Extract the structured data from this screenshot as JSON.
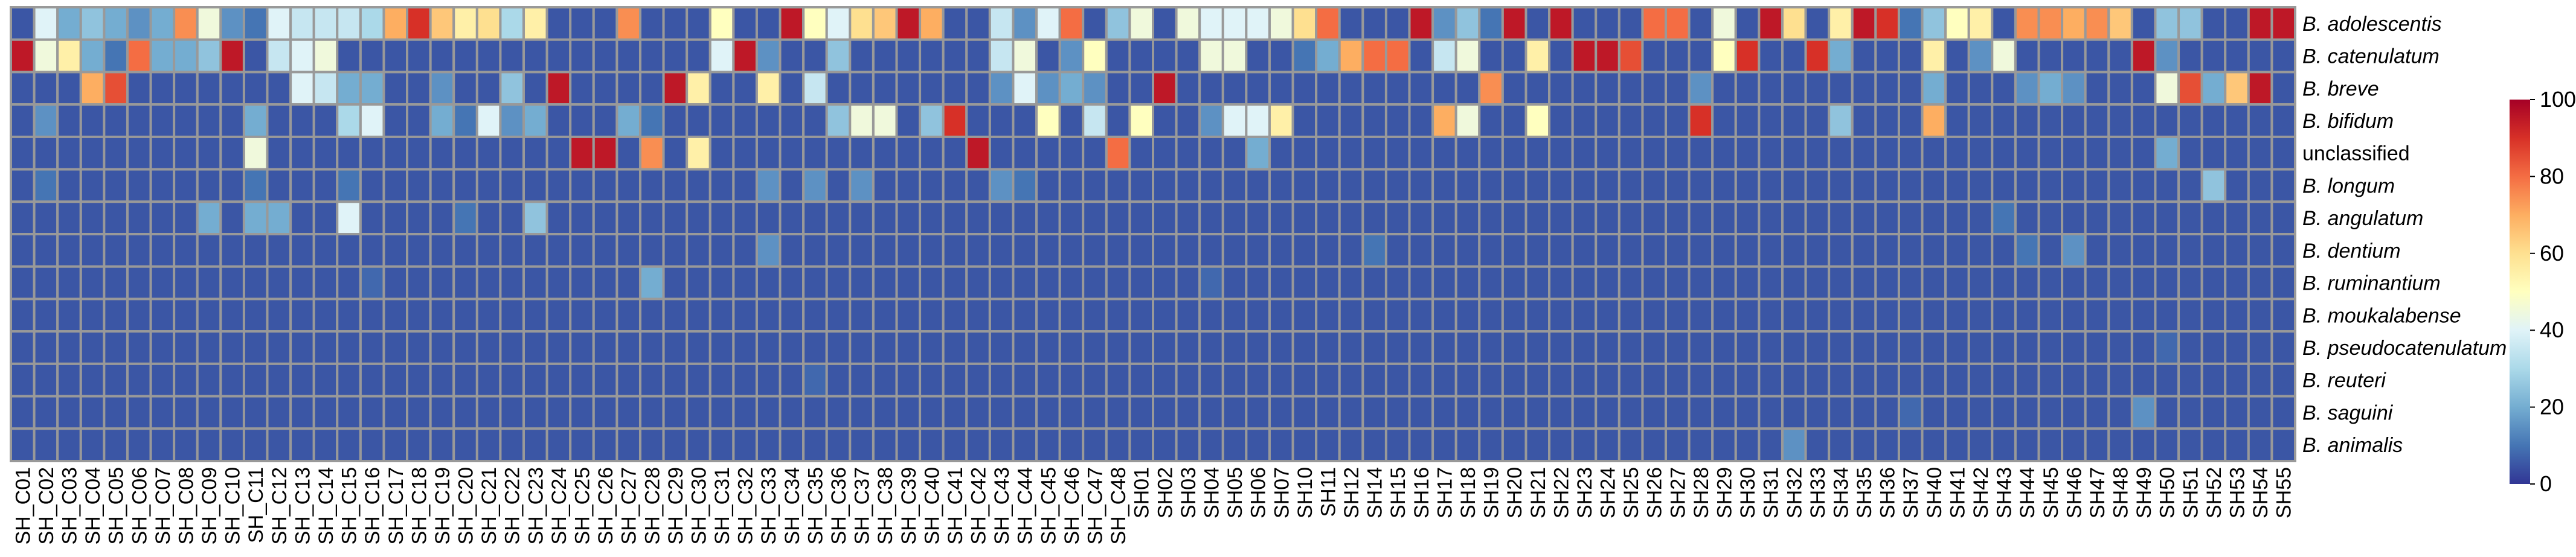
{
  "chart_data": {
    "type": "heatmap",
    "title": "",
    "rows": [
      "B. adolescentis",
      "B. catenulatum",
      "B. breve",
      "B. bifidum",
      "unclassified",
      "B. longum",
      "B. angulatum",
      "B. dentium",
      "B. ruminantium",
      "B. moukalabense",
      "B. pseudocatenulatum",
      "B. reuteri",
      "B. saguini",
      "B. animalis"
    ],
    "row_italic": [
      true,
      true,
      true,
      true,
      false,
      true,
      true,
      true,
      true,
      true,
      true,
      true,
      true,
      true
    ],
    "columns": [
      "SH_C01",
      "SH_C02",
      "SH_C03",
      "SH_C04",
      "SH_C05",
      "SH_C06",
      "SH_C07",
      "SH_C08",
      "SH_C09",
      "SH_C10",
      "SH_C11",
      "SH_C12",
      "SH_C13",
      "SH_C14",
      "SH_C15",
      "SH_C16",
      "SH_C17",
      "SH_C18",
      "SH_C19",
      "SH_C20",
      "SH_C21",
      "SH_C22",
      "SH_C23",
      "SH_C24",
      "SH_C25",
      "SH_C26",
      "SH_C27",
      "SH_C28",
      "SH_C29",
      "SH_C30",
      "SH_C31",
      "SH_C32",
      "SH_C33",
      "SH_C34",
      "SH_C35",
      "SH_C36",
      "SH_C37",
      "SH_C38",
      "SH_C39",
      "SH_C40",
      "SH_C41",
      "SH_C42",
      "SH_C43",
      "SH_C44",
      "SH_C45",
      "SH_C46",
      "SH_C47",
      "SH_C48",
      "SH01",
      "SH02",
      "SH03",
      "SH04",
      "SH05",
      "SH06",
      "SH07",
      "SH10",
      "SH11",
      "SH12",
      "SH14",
      "SH15",
      "SH16",
      "SH17",
      "SH18",
      "SH19",
      "SH20",
      "SH21",
      "SH22",
      "SH23",
      "SH24",
      "SH25",
      "SH26",
      "SH27",
      "SH28",
      "SH29",
      "SH30",
      "SH31",
      "SH32",
      "SH33",
      "SH34",
      "SH35",
      "SH36",
      "SH37",
      "SH40",
      "SH41",
      "SH42",
      "SH43",
      "SH44",
      "SH45",
      "SH46",
      "SH47",
      "SH48",
      "SH49",
      "SH50",
      "SH51",
      "SH52",
      "SH53",
      "SH54",
      "SH55"
    ],
    "values": [
      [
        5,
        40,
        20,
        25,
        20,
        15,
        20,
        75,
        45,
        15,
        10,
        40,
        35,
        35,
        35,
        30,
        70,
        90,
        65,
        55,
        60,
        30,
        55,
        5,
        5,
        5,
        75,
        5,
        5,
        5,
        50,
        5,
        5,
        95,
        50,
        40,
        60,
        65,
        95,
        70,
        5,
        5,
        35,
        15,
        40,
        80,
        5,
        25,
        45,
        5,
        45,
        40,
        40,
        40,
        45,
        60,
        80,
        5,
        5,
        5,
        95,
        15,
        25,
        10,
        95,
        5,
        95,
        5,
        5,
        5,
        80,
        80,
        5,
        45,
        5,
        95,
        60,
        5,
        55,
        95,
        90,
        10,
        25,
        50,
        55,
        5,
        75,
        75,
        70,
        75,
        65,
        5,
        25,
        25,
        5,
        5,
        95,
        95
      ],
      [
        95,
        45,
        55,
        20,
        10,
        80,
        20,
        20,
        25,
        95,
        5,
        35,
        40,
        45,
        5,
        5,
        5,
        5,
        5,
        5,
        5,
        5,
        5,
        5,
        5,
        5,
        5,
        5,
        5,
        5,
        40,
        95,
        15,
        5,
        5,
        25,
        5,
        5,
        5,
        5,
        5,
        5,
        35,
        45,
        5,
        15,
        50,
        5,
        5,
        5,
        5,
        45,
        45,
        5,
        5,
        10,
        20,
        70,
        80,
        80,
        5,
        35,
        45,
        5,
        5,
        55,
        5,
        95,
        95,
        85,
        5,
        5,
        5,
        50,
        90,
        5,
        5,
        90,
        20,
        5,
        5,
        5,
        55,
        5,
        15,
        45,
        5,
        5,
        5,
        5,
        5,
        95,
        15,
        5,
        5,
        5,
        5,
        5
      ],
      [
        5,
        5,
        5,
        70,
        85,
        5,
        5,
        5,
        5,
        5,
        5,
        5,
        40,
        35,
        20,
        20,
        5,
        5,
        15,
        5,
        5,
        25,
        5,
        95,
        5,
        5,
        5,
        5,
        95,
        55,
        5,
        5,
        55,
        5,
        35,
        5,
        5,
        5,
        5,
        5,
        5,
        5,
        15,
        40,
        15,
        20,
        15,
        5,
        5,
        95,
        5,
        5,
        5,
        5,
        5,
        5,
        5,
        5,
        5,
        5,
        5,
        5,
        5,
        75,
        5,
        5,
        5,
        5,
        5,
        5,
        5,
        5,
        15,
        5,
        5,
        5,
        5,
        5,
        5,
        5,
        5,
        5,
        20,
        5,
        5,
        5,
        15,
        20,
        15,
        5,
        5,
        5,
        45,
        85,
        20,
        65,
        95,
        5
      ],
      [
        5,
        15,
        5,
        5,
        5,
        5,
        5,
        5,
        5,
        5,
        20,
        5,
        5,
        5,
        30,
        40,
        5,
        5,
        20,
        10,
        40,
        15,
        20,
        5,
        5,
        5,
        20,
        10,
        5,
        5,
        5,
        5,
        5,
        5,
        5,
        25,
        45,
        45,
        5,
        25,
        90,
        5,
        5,
        5,
        50,
        5,
        35,
        5,
        50,
        5,
        5,
        15,
        40,
        40,
        55,
        5,
        5,
        5,
        5,
        5,
        5,
        70,
        45,
        5,
        5,
        50,
        5,
        5,
        5,
        5,
        5,
        5,
        90,
        5,
        5,
        5,
        5,
        5,
        25,
        5,
        5,
        5,
        70,
        5,
        5,
        5,
        5,
        5,
        5,
        5,
        5,
        5,
        5,
        5,
        5,
        5,
        5,
        5
      ],
      [
        5,
        5,
        5,
        5,
        5,
        5,
        5,
        5,
        5,
        5,
        45,
        5,
        5,
        5,
        5,
        5,
        5,
        5,
        5,
        5,
        5,
        5,
        5,
        5,
        95,
        95,
        5,
        75,
        5,
        55,
        5,
        5,
        5,
        5,
        5,
        5,
        5,
        5,
        5,
        5,
        5,
        95,
        5,
        5,
        5,
        5,
        5,
        80,
        5,
        5,
        5,
        5,
        5,
        20,
        5,
        5,
        5,
        5,
        5,
        5,
        5,
        5,
        5,
        5,
        5,
        5,
        5,
        5,
        5,
        5,
        5,
        5,
        5,
        5,
        5,
        5,
        5,
        5,
        5,
        5,
        5,
        5,
        5,
        5,
        5,
        5,
        5,
        5,
        5,
        5,
        5,
        5,
        20,
        5,
        5,
        5,
        5,
        5
      ],
      [
        5,
        10,
        5,
        5,
        5,
        5,
        5,
        5,
        5,
        5,
        10,
        5,
        5,
        5,
        10,
        5,
        5,
        5,
        5,
        5,
        5,
        5,
        5,
        5,
        5,
        5,
        5,
        5,
        5,
        5,
        5,
        5,
        15,
        5,
        15,
        5,
        15,
        5,
        5,
        5,
        5,
        5,
        15,
        10,
        5,
        5,
        5,
        5,
        5,
        5,
        5,
        5,
        5,
        5,
        5,
        5,
        5,
        5,
        5,
        5,
        5,
        5,
        5,
        5,
        5,
        5,
        5,
        5,
        5,
        5,
        5,
        5,
        5,
        5,
        5,
        5,
        5,
        5,
        5,
        5,
        5,
        5,
        5,
        5,
        5,
        5,
        5,
        5,
        5,
        5,
        5,
        5,
        5,
        5,
        25,
        5,
        5,
        5
      ],
      [
        5,
        5,
        5,
        5,
        5,
        5,
        5,
        5,
        20,
        5,
        20,
        20,
        5,
        5,
        40,
        5,
        5,
        5,
        5,
        10,
        5,
        5,
        25,
        5,
        5,
        5,
        5,
        5,
        5,
        5,
        5,
        5,
        5,
        5,
        5,
        5,
        5,
        5,
        5,
        5,
        5,
        5,
        5,
        5,
        5,
        5,
        5,
        5,
        5,
        5,
        5,
        5,
        5,
        5,
        5,
        5,
        5,
        5,
        5,
        5,
        5,
        5,
        5,
        5,
        5,
        5,
        5,
        5,
        5,
        5,
        5,
        5,
        5,
        5,
        5,
        5,
        5,
        5,
        5,
        5,
        5,
        5,
        5,
        5,
        5,
        10,
        5,
        5,
        5,
        5,
        5,
        5,
        5,
        5,
        5,
        5,
        5,
        5
      ],
      [
        5,
        5,
        5,
        5,
        5,
        5,
        5,
        5,
        5,
        5,
        5,
        5,
        5,
        5,
        5,
        5,
        5,
        5,
        5,
        5,
        5,
        5,
        5,
        5,
        5,
        5,
        5,
        5,
        5,
        5,
        5,
        5,
        15,
        5,
        5,
        5,
        5,
        5,
        5,
        5,
        5,
        5,
        5,
        5,
        5,
        5,
        5,
        5,
        5,
        5,
        5,
        5,
        5,
        5,
        5,
        5,
        5,
        5,
        10,
        5,
        5,
        5,
        5,
        5,
        5,
        5,
        5,
        5,
        5,
        5,
        5,
        5,
        5,
        5,
        5,
        5,
        5,
        5,
        5,
        5,
        5,
        5,
        5,
        5,
        5,
        5,
        10,
        5,
        15,
        5,
        5,
        5,
        5,
        5,
        5,
        5,
        5,
        5
      ],
      [
        5,
        5,
        5,
        5,
        5,
        5,
        5,
        5,
        5,
        5,
        5,
        5,
        5,
        5,
        5,
        8,
        5,
        5,
        5,
        5,
        5,
        5,
        5,
        5,
        5,
        5,
        5,
        20,
        5,
        5,
        5,
        5,
        5,
        5,
        5,
        5,
        5,
        5,
        5,
        5,
        5,
        5,
        5,
        5,
        5,
        5,
        5,
        5,
        5,
        5,
        5,
        8,
        5,
        5,
        5,
        5,
        5,
        5,
        5,
        5,
        5,
        5,
        5,
        5,
        5,
        5,
        5,
        5,
        5,
        5,
        5,
        5,
        5,
        5,
        5,
        5,
        5,
        5,
        5,
        5,
        5,
        5,
        5,
        5,
        5,
        5,
        5,
        5,
        5,
        5,
        5,
        5,
        5,
        5,
        5,
        5,
        5,
        5
      ],
      [
        5,
        5,
        5,
        5,
        5,
        5,
        5,
        5,
        5,
        5,
        5,
        5,
        5,
        5,
        5,
        5,
        5,
        5,
        5,
        5,
        5,
        5,
        5,
        5,
        5,
        5,
        5,
        5,
        5,
        5,
        5,
        5,
        5,
        5,
        5,
        5,
        5,
        5,
        5,
        5,
        5,
        5,
        5,
        5,
        5,
        5,
        5,
        5,
        5,
        5,
        5,
        5,
        5,
        5,
        5,
        5,
        5,
        5,
        5,
        5,
        5,
        5,
        5,
        5,
        5,
        5,
        5,
        5,
        5,
        5,
        5,
        5,
        5,
        5,
        5,
        5,
        5,
        5,
        5,
        5,
        5,
        5,
        5,
        5,
        5,
        5,
        5,
        5,
        5,
        5,
        5,
        5,
        5,
        5,
        5,
        5,
        5,
        5
      ],
      [
        5,
        5,
        5,
        5,
        5,
        5,
        5,
        5,
        5,
        5,
        5,
        5,
        5,
        5,
        5,
        5,
        5,
        5,
        5,
        5,
        5,
        5,
        5,
        5,
        5,
        5,
        5,
        5,
        5,
        5,
        5,
        5,
        5,
        5,
        5,
        5,
        5,
        5,
        5,
        5,
        5,
        5,
        5,
        5,
        5,
        5,
        5,
        5,
        5,
        5,
        5,
        5,
        5,
        5,
        5,
        5,
        5,
        5,
        5,
        5,
        5,
        5,
        5,
        5,
        5,
        5,
        5,
        5,
        5,
        5,
        5,
        5,
        5,
        5,
        5,
        5,
        5,
        5,
        5,
        5,
        5,
        5,
        5,
        5,
        5,
        5,
        5,
        5,
        5,
        5,
        5,
        5,
        8,
        5,
        5,
        5,
        5,
        5
      ],
      [
        5,
        5,
        5,
        5,
        5,
        5,
        5,
        5,
        5,
        5,
        5,
        5,
        5,
        5,
        5,
        5,
        5,
        5,
        5,
        5,
        5,
        5,
        5,
        5,
        5,
        5,
        5,
        5,
        5,
        5,
        5,
        5,
        5,
        5,
        8,
        5,
        5,
        5,
        5,
        5,
        5,
        5,
        5,
        5,
        5,
        5,
        5,
        5,
        5,
        5,
        5,
        5,
        5,
        5,
        5,
        5,
        5,
        5,
        5,
        5,
        5,
        5,
        5,
        5,
        5,
        5,
        5,
        5,
        5,
        5,
        5,
        5,
        5,
        5,
        5,
        5,
        5,
        5,
        5,
        5,
        5,
        5,
        5,
        5,
        5,
        5,
        5,
        5,
        5,
        5,
        5,
        5,
        5,
        5,
        5,
        5,
        5,
        5
      ],
      [
        5,
        5,
        5,
        5,
        5,
        5,
        5,
        5,
        5,
        5,
        5,
        5,
        5,
        5,
        5,
        5,
        5,
        5,
        5,
        5,
        5,
        5,
        5,
        5,
        5,
        5,
        5,
        5,
        5,
        5,
        5,
        5,
        5,
        5,
        5,
        5,
        5,
        5,
        5,
        5,
        5,
        5,
        5,
        5,
        5,
        5,
        5,
        5,
        5,
        5,
        5,
        5,
        5,
        5,
        5,
        5,
        5,
        5,
        5,
        5,
        5,
        5,
        5,
        5,
        5,
        5,
        5,
        5,
        5,
        5,
        5,
        5,
        5,
        5,
        5,
        5,
        5,
        5,
        5,
        5,
        5,
        8,
        5,
        5,
        5,
        5,
        5,
        5,
        5,
        5,
        5,
        15,
        5,
        5,
        5,
        5,
        5,
        5
      ],
      [
        5,
        5,
        5,
        5,
        5,
        5,
        5,
        5,
        5,
        5,
        5,
        5,
        5,
        5,
        5,
        5,
        5,
        5,
        5,
        5,
        5,
        5,
        5,
        5,
        5,
        5,
        5,
        5,
        5,
        5,
        5,
        5,
        5,
        5,
        5,
        5,
        5,
        5,
        5,
        5,
        5,
        5,
        5,
        5,
        5,
        5,
        5,
        5,
        5,
        5,
        5,
        5,
        5,
        5,
        5,
        5,
        5,
        5,
        5,
        5,
        5,
        5,
        5,
        5,
        5,
        5,
        5,
        5,
        5,
        5,
        5,
        5,
        5,
        5,
        5,
        5,
        15,
        5,
        5,
        5,
        5,
        5,
        5,
        5,
        5,
        5,
        5,
        5,
        5,
        5,
        5,
        5,
        5,
        5,
        5,
        5,
        5,
        5
      ]
    ],
    "color_scale": {
      "min": 0,
      "max": 100,
      "stops": [
        "#313695",
        "#4575b4",
        "#74add1",
        "#abd9e9",
        "#e0f3f8",
        "#ffffbf",
        "#fee090",
        "#fdae61",
        "#f46d43",
        "#d73027",
        "#a50026"
      ],
      "ticks": [
        0,
        20,
        40,
        60,
        80,
        100
      ]
    },
    "cell_border_color": "#999999",
    "legend_position": "right"
  }
}
